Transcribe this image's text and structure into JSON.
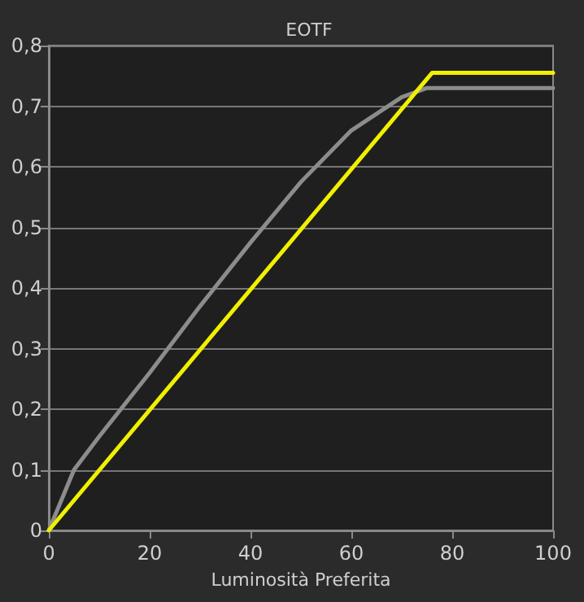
{
  "chart_data": {
    "type": "line",
    "title": "EOTF",
    "xlabel": "Luminosità Preferita",
    "xlim": [
      0,
      100
    ],
    "xticks": [
      0,
      20,
      40,
      60,
      80,
      100
    ],
    "ylim": [
      0,
      0.8
    ],
    "yticks": [
      0,
      {
        "value": 0.1,
        "label": "0,1"
      },
      {
        "value": 0.2,
        "label": "0,2"
      },
      {
        "value": 0.3,
        "label": "0,3"
      },
      {
        "value": 0.4,
        "label": "0,4"
      },
      {
        "value": 0.5,
        "label": "0,5"
      },
      {
        "value": 0.6,
        "label": "0,6"
      },
      {
        "value": 0.7,
        "label": "0,7"
      },
      {
        "value": 0.8,
        "label": "0,8"
      }
    ],
    "grid": "y",
    "marker": "none",
    "line_style": "solid",
    "series": [
      {
        "color": "#8c8c8c",
        "x": [
          0,
          5,
          10,
          20,
          30,
          40,
          50,
          60,
          70,
          75,
          100
        ],
        "values": [
          0,
          0.1,
          0.155,
          0.26,
          0.37,
          0.475,
          0.575,
          0.66,
          0.715,
          0.73,
          0.73
        ]
      },
      {
        "color": "#f0f000",
        "x": [
          0,
          76,
          100
        ],
        "values": [
          0,
          0.755,
          0.755
        ]
      }
    ]
  }
}
